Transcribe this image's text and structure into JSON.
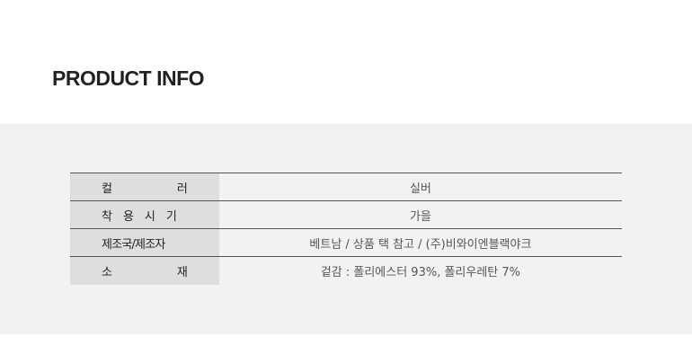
{
  "title": "PRODUCT INFO",
  "rows": [
    {
      "label": "컬 러",
      "label_chars": [
        "컬",
        "러"
      ],
      "value": "실버"
    },
    {
      "label": "착용시기",
      "label_chars": [
        "착",
        "용",
        "시",
        "기"
      ],
      "value": "가을"
    },
    {
      "label": "제조국/제조자",
      "label_chars": [
        "제조국/제조자"
      ],
      "value": "베트남  / 상품 택 참고 / (주)비와이엔블랙야크"
    },
    {
      "label": "소 재",
      "label_chars": [
        "소",
        "재"
      ],
      "value": "겉감 : 폴리에스터 93%, 폴리우레탄 7%"
    }
  ]
}
